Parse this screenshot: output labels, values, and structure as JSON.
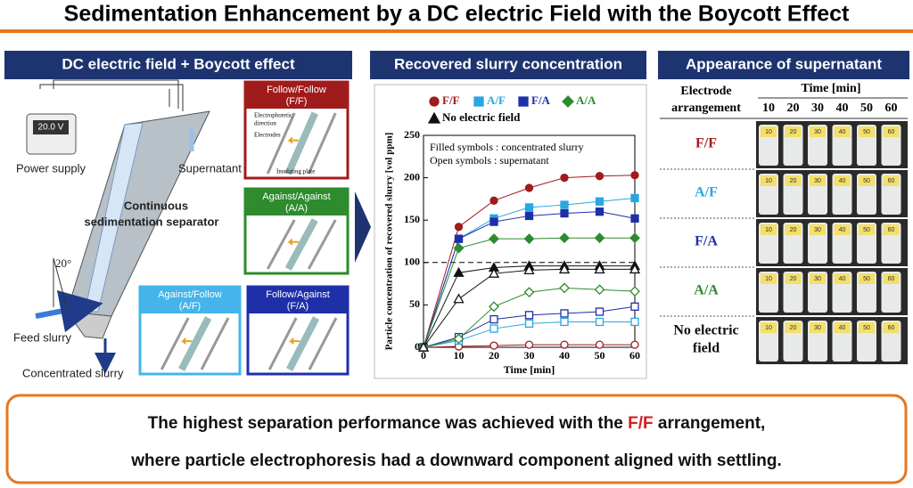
{
  "title": "Sedimentation Enhancement by a DC electric Field with  the Boycott Effect",
  "left_panel": {
    "title": "DC electric field + Boycott effect",
    "voltage": "20.0 V",
    "power_supply": "Power supply",
    "supernatant": "Supernatant",
    "separator": [
      "Continuous",
      "sedimentation separator"
    ],
    "angle": "20°",
    "feed": "Feed slurry",
    "concentrated": "Concentrated slurry",
    "boxes": [
      {
        "title": [
          "Follow/Follow",
          "(F/F)"
        ],
        "notes": [
          "Electrophoretic",
          "direction",
          "Electrodes",
          "Insulating plate"
        ]
      },
      {
        "title": [
          "Against/Against",
          "(A/A)"
        ]
      },
      {
        "title": [
          "Against/Follow",
          "(A/F)"
        ]
      },
      {
        "title": [
          "Follow/Against",
          "(F/A)"
        ]
      }
    ]
  },
  "chart_data": {
    "type": "line",
    "title": "Recovered slurry concentration",
    "x_label": "Time [min]",
    "y_label": "Particle concentration of recovered slurry [vol ppm]",
    "notes": [
      "Filled symbols : concentrated slurry",
      "Open symbols : supernatant"
    ],
    "x": [
      0,
      10,
      20,
      30,
      40,
      50,
      60
    ],
    "xlim": [
      0,
      60
    ],
    "xticks": [
      0,
      10,
      20,
      30,
      40,
      50,
      60
    ],
    "ylim": [
      0,
      250
    ],
    "yticks": [
      0,
      50,
      100,
      150,
      200,
      250
    ],
    "reference_line": 100,
    "series": [
      {
        "name": "F/F",
        "color": "#a01c1c",
        "marker": "circle",
        "values": [
          0,
          142,
          173,
          188,
          200,
          202,
          203
        ],
        "open_values": [
          0,
          1,
          2,
          3,
          3,
          3,
          3
        ]
      },
      {
        "name": "A/F",
        "color": "#2aa6e0",
        "marker": "square",
        "values": [
          0,
          128,
          152,
          165,
          168,
          172,
          176
        ],
        "open_values": [
          0,
          8,
          22,
          28,
          30,
          30,
          30
        ]
      },
      {
        "name": "F/A",
        "color": "#1f2fa8",
        "marker": "square",
        "values": [
          0,
          128,
          148,
          155,
          158,
          160,
          152
        ],
        "open_values": [
          0,
          12,
          33,
          38,
          40,
          42,
          48
        ]
      },
      {
        "name": "A/A",
        "color": "#2e8b2e",
        "marker": "diamond",
        "values": [
          0,
          117,
          128,
          128,
          129,
          129,
          129
        ],
        "open_values": [
          0,
          10,
          48,
          65,
          70,
          68,
          66
        ]
      },
      {
        "name": "No electric field",
        "color": "#111111",
        "marker": "triangle",
        "values": [
          0,
          88,
          94,
          96,
          96,
          96,
          96
        ],
        "open_values": [
          0,
          57,
          87,
          91,
          92,
          92,
          92
        ]
      }
    ]
  },
  "right_panel": {
    "title": "Appearance of supernatant",
    "col_header": [
      "Electrode",
      "arrangement"
    ],
    "time_header": "Time [min]",
    "times": [
      "10",
      "20",
      "30",
      "40",
      "50",
      "60"
    ],
    "rows": [
      [
        "F/F"
      ],
      [
        "A/F"
      ],
      [
        "F/A"
      ],
      [
        "A/A"
      ],
      [
        "No electric",
        "field"
      ]
    ]
  },
  "conclusion": {
    "line1": [
      "The highest separation performance was achieved with the ",
      "F/F",
      " arrangement,"
    ],
    "line2": "where particle electrophoresis had a downward component aligned with settling."
  }
}
